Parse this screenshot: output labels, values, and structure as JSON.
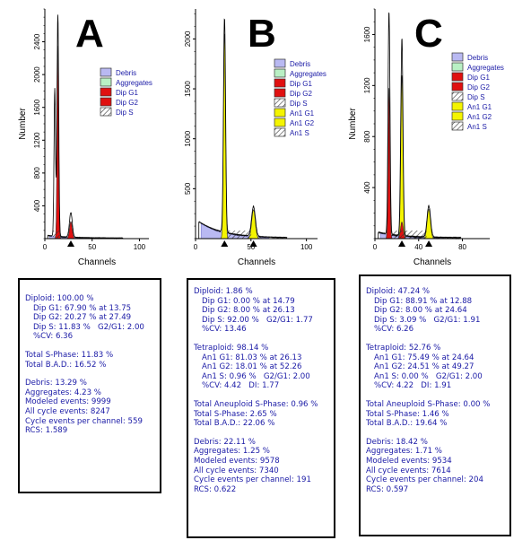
{
  "chart_data": [
    {
      "type": "area",
      "panel_label": "A",
      "ylabel": "Number",
      "xlabel": "Channels",
      "xlim": [
        0,
        110
      ],
      "ylim": [
        0,
        2800
      ],
      "xticks": [
        0,
        50,
        100
      ],
      "yticks": [
        400,
        800,
        1200,
        1600,
        2000,
        2400
      ],
      "marker_x": [
        27.5
      ],
      "legend": [
        {
          "name": "Debris",
          "color": "#b9b9f2"
        },
        {
          "name": "Aggregates",
          "color": "#b9f0c4"
        },
        {
          "name": "Dip G1",
          "color": "#e01010"
        },
        {
          "name": "Dip G2",
          "color": "#e01010"
        },
        {
          "name": "Dip S",
          "color": "hatch"
        }
      ],
      "series": [
        {
          "name": "Dip G1",
          "color": "#e01010",
          "center": 13.75,
          "height": 2350,
          "width": 0.85
        },
        {
          "name": "Dip G2",
          "color": "#e01010",
          "center": 27.49,
          "height": 210,
          "width": 1.4
        }
      ],
      "outline_peaks": [
        {
          "center": 13.75,
          "height": 2700,
          "width": 0.9
        },
        {
          "center": 27.49,
          "height": 300,
          "width": 1.5
        },
        {
          "center": 10.5,
          "height": 1800,
          "width": 0.8
        }
      ],
      "debris_level": 30
    },
    {
      "type": "area",
      "panel_label": "B",
      "ylabel": "Number",
      "xlabel": "Channels",
      "xlim": [
        0,
        110
      ],
      "ylim": [
        0,
        2300
      ],
      "xticks": [
        0,
        50,
        100
      ],
      "yticks": [
        500,
        1000,
        1500,
        2000
      ],
      "marker_x": [
        26.13,
        52.26
      ],
      "legend": [
        {
          "name": "Debris",
          "color": "#b9b9f2"
        },
        {
          "name": "Aggregates",
          "color": "#b9f0c4"
        },
        {
          "name": "Dip G1",
          "color": "#e01010"
        },
        {
          "name": "Dip G2",
          "color": "#e01010"
        },
        {
          "name": "Dip S",
          "color": "hatch"
        },
        {
          "name": "An1 G1",
          "color": "#f4f400"
        },
        {
          "name": "An1 G2",
          "color": "#f4f400"
        },
        {
          "name": "An1 S",
          "color": "hatch"
        }
      ],
      "series": [
        {
          "name": "An1 G1",
          "color": "#f4f400",
          "center": 26.13,
          "height": 2050,
          "width": 0.9
        },
        {
          "name": "An1 G2",
          "color": "#f4f400",
          "center": 52.26,
          "height": 290,
          "width": 1.6
        }
      ],
      "outline_peaks": [
        {
          "center": 26.13,
          "height": 2150,
          "width": 0.95
        },
        {
          "center": 52.26,
          "height": 300,
          "width": 1.7
        }
      ],
      "debris_level": 150
    },
    {
      "type": "area",
      "panel_label": "C",
      "ylabel": "Number",
      "xlabel": "Channels",
      "xlim": [
        0,
        105
      ],
      "ylim": [
        0,
        1800
      ],
      "xticks": [
        0,
        40,
        80
      ],
      "yticks": [
        400,
        800,
        1200,
        1600
      ],
      "marker_x": [
        24.64,
        49.27
      ],
      "legend": [
        {
          "name": "Debris",
          "color": "#b9b9f2"
        },
        {
          "name": "Aggregates",
          "color": "#b9f0c4"
        },
        {
          "name": "Dip G1",
          "color": "#e01010"
        },
        {
          "name": "Dip G2",
          "color": "#e01010"
        },
        {
          "name": "Dip S",
          "color": "hatch"
        },
        {
          "name": "An1 G1",
          "color": "#f4f400"
        },
        {
          "name": "An1 G2",
          "color": "#f4f400"
        },
        {
          "name": "An1 S",
          "color": "hatch"
        }
      ],
      "series": [
        {
          "name": "Dip G1",
          "color": "#e01010",
          "center": 12.88,
          "height": 1180,
          "width": 0.8
        },
        {
          "name": "An1 G1",
          "color": "#f4f400",
          "center": 24.64,
          "height": 1280,
          "width": 0.95
        },
        {
          "name": "Dip G2",
          "color": "#e01010",
          "center": 24.64,
          "height": 130,
          "width": 1.2
        },
        {
          "name": "An1 G2",
          "color": "#f4f400",
          "center": 49.27,
          "height": 230,
          "width": 1.5
        }
      ],
      "outline_peaks": [
        {
          "center": 12.88,
          "height": 1750,
          "width": 0.85
        },
        {
          "center": 24.64,
          "height": 1550,
          "width": 1.0
        },
        {
          "center": 49.27,
          "height": 245,
          "width": 1.6
        }
      ],
      "debris_level": 40
    }
  ],
  "stats": [
    {
      "label": "A",
      "blocks": [
        [
          {
            "text": "Diploid: 100.00 %",
            "indent": false
          },
          {
            "text": "Dip G1: 67.90 % at 13.75",
            "indent": true
          },
          {
            "text": "Dip G2: 20.27 % at 27.49",
            "indent": true
          },
          {
            "text": "Dip S: 11.83 %   G2/G1: 2.00",
            "indent": true
          },
          {
            "text": "%CV: 6.36",
            "indent": true
          }
        ],
        [
          {
            "text": "Total S-Phase: 11.83 %",
            "indent": false
          },
          {
            "text": "Total B.A.D.: 16.52 %",
            "indent": false
          }
        ],
        [
          {
            "text": "Debris: 13.29 %",
            "indent": false
          },
          {
            "text": "Aggregates: 4.23 %",
            "indent": false
          },
          {
            "text": "Modeled events: 9999",
            "indent": false
          },
          {
            "text": "All cycle events: 8247",
            "indent": false
          },
          {
            "text": "Cycle events per channel: 559",
            "indent": false
          },
          {
            "text": "RCS: 1.589",
            "indent": false
          }
        ]
      ]
    },
    {
      "label": "B",
      "blocks": [
        [
          {
            "text": "Diploid: 1.86 %",
            "indent": false
          },
          {
            "text": "Dip G1: 0.00 % at 14.79",
            "indent": true
          },
          {
            "text": "Dip G2: 8.00 % at 26.13",
            "indent": true
          },
          {
            "text": "Dip S: 92.00 %   G2/G1: 1.77",
            "indent": true
          },
          {
            "text": "%CV: 13.46",
            "indent": true
          }
        ],
        [
          {
            "text": "Tetraploid: 98.14 %",
            "indent": false
          },
          {
            "text": "An1 G1: 81.03 % at 26.13",
            "indent": true
          },
          {
            "text": "An1 G2: 18.01 % at 52.26",
            "indent": true
          },
          {
            "text": "An1 S: 0.96 %   G2/G1: 2.00",
            "indent": true
          },
          {
            "text": "%CV: 4.42   DI: 1.77",
            "indent": true
          }
        ],
        [
          {
            "text": "Total Aneuploid S-Phase: 0.96 %",
            "indent": false
          },
          {
            "text": "Total S-Phase: 2.65 %",
            "indent": false
          },
          {
            "text": "Total B.A.D.: 22.06 %",
            "indent": false
          }
        ],
        [
          {
            "text": "Debris: 22.11 %",
            "indent": false
          },
          {
            "text": "Aggregates: 1.25 %",
            "indent": false
          },
          {
            "text": "Modeled events: 9578",
            "indent": false
          },
          {
            "text": "All cycle events: 7340",
            "indent": false
          },
          {
            "text": "Cycle events per channel: 191",
            "indent": false
          },
          {
            "text": "RCS: 0.622",
            "indent": false
          }
        ]
      ]
    },
    {
      "label": "C",
      "blocks": [
        [
          {
            "text": "Diploid: 47.24 %",
            "indent": false
          },
          {
            "text": "Dip G1: 88.91 % at 12.88",
            "indent": true
          },
          {
            "text": "Dip G2: 8.00 % at 24.64",
            "indent": true
          },
          {
            "text": "Dip S: 3.09 %   G2/G1: 1.91",
            "indent": true
          },
          {
            "text": "%CV: 6.26",
            "indent": true
          }
        ],
        [
          {
            "text": "Tetraploid: 52.76 %",
            "indent": false
          },
          {
            "text": "An1 G1: 75.49 % at 24.64",
            "indent": true
          },
          {
            "text": "An1 G2: 24.51 % at 49.27",
            "indent": true
          },
          {
            "text": "An1 S: 0.00 %   G2/G1: 2.00",
            "indent": true
          },
          {
            "text": "%CV: 4.22   DI: 1.91",
            "indent": true
          }
        ],
        [
          {
            "text": "Total Aneuploid S-Phase: 0.00 %",
            "indent": false
          },
          {
            "text": "Total S-Phase: 1.46 %",
            "indent": false
          },
          {
            "text": "Total B.A.D.: 19.64 %",
            "indent": false
          }
        ],
        [
          {
            "text": "Debris: 18.42 %",
            "indent": false
          },
          {
            "text": "Aggregates: 1.71 %",
            "indent": false
          },
          {
            "text": "Modeled events: 9534",
            "indent": false
          },
          {
            "text": "All cycle events: 7614",
            "indent": false
          },
          {
            "text": "Cycle events per channel: 204",
            "indent": false
          },
          {
            "text": "RCS: 0.597",
            "indent": false
          }
        ]
      ]
    }
  ]
}
